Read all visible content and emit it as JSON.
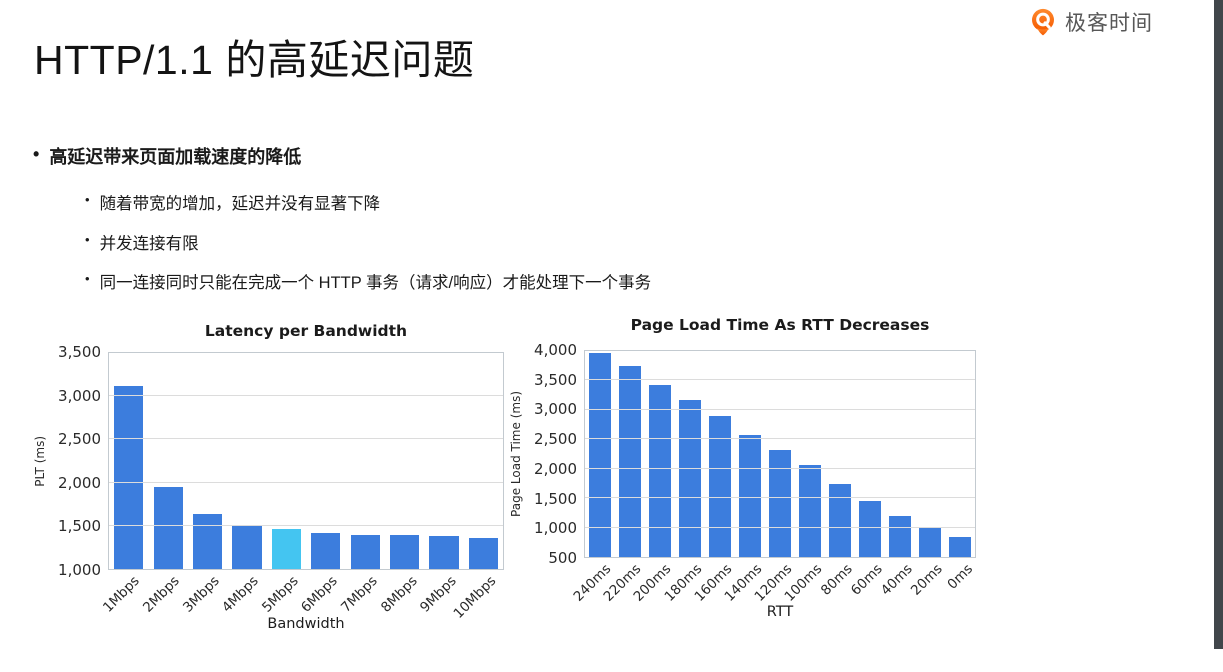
{
  "page": {
    "title": "HTTP/1.1 的高延迟问题"
  },
  "logo": {
    "text": "极客时间",
    "icon": "geektime-logo-icon",
    "icon_color": "#f96400",
    "text_color": "#575757"
  },
  "bullets": {
    "marker": "•",
    "main": "高延迟带来页面加载速度的降低",
    "subs": [
      "随着带宽的增加，延迟并没有显著下降",
      "并发连接有限",
      "同一连接同时只能在完成一个 HTTP 事务（请求/响应）才能处理下一个事务"
    ]
  },
  "colors": {
    "side_strip": "#41464b",
    "bar_blue": "#3c7ddd",
    "bar_cyan": "#44c5f1",
    "gridline": "#dcdcdc"
  },
  "chart_data": [
    {
      "type": "bar",
      "title": "Latency per Bandwidth",
      "xlabel": "Bandwidth",
      "ylabel": "PLT (ms)",
      "categories": [
        "1Mbps",
        "2Mbps",
        "3Mbps",
        "4Mbps",
        "5Mbps",
        "6Mbps",
        "7Mbps",
        "8Mbps",
        "9Mbps",
        "10Mbps"
      ],
      "values": [
        3120,
        1950,
        1640,
        1500,
        1460,
        1420,
        1395,
        1390,
        1380,
        1360
      ],
      "ylim": [
        1000,
        3500
      ],
      "ytick_step": 500,
      "bar_color": "#3c7ddd",
      "highlight_index": 4,
      "highlight_color": "#44c5f1",
      "grid": true,
      "legend": "none"
    },
    {
      "type": "bar",
      "title": "Page Load Time As RTT Decreases",
      "xlabel": "RTT",
      "ylabel": "Page Load Time (ms)",
      "categories": [
        "240ms",
        "220ms",
        "200ms",
        "180ms",
        "160ms",
        "140ms",
        "120ms",
        "100ms",
        "80ms",
        "60ms",
        "40ms",
        "20ms",
        "0ms"
      ],
      "values": [
        3970,
        3740,
        3420,
        3170,
        2890,
        2580,
        2320,
        2060,
        1740,
        1460,
        1200,
        990,
        840
      ],
      "ylim": [
        500,
        4000
      ],
      "ytick_step": 500,
      "bar_color": "#3c7ddd",
      "highlight_index": -1,
      "highlight_color": "#3c7ddd",
      "grid": true,
      "legend": "none"
    }
  ]
}
